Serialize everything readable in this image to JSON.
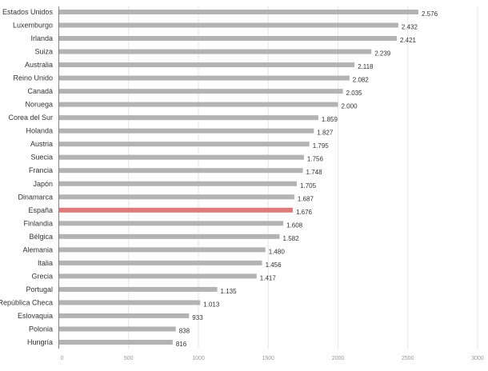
{
  "chart_data": {
    "type": "bar",
    "orientation": "horizontal",
    "categories": [
      "Estados Unidos",
      "Luxemburgo",
      "Irlanda",
      "Suiza",
      "Australia",
      "Reino Unido",
      "Canadá",
      "Noruega",
      "Corea del Sur",
      "Holanda",
      "Austria",
      "Suecia",
      "Francia",
      "Japón",
      "Dinamarca",
      "España",
      "Finlandia",
      "Bélgica",
      "Alemania",
      "Italia",
      "Grecia",
      "Portugal",
      "República Checa",
      "Eslovaquia",
      "Polonia",
      "Hungría"
    ],
    "values": [
      2576,
      2432,
      2421,
      2239,
      2118,
      2082,
      2035,
      2000,
      1859,
      1827,
      1795,
      1756,
      1748,
      1705,
      1687,
      1676,
      1608,
      1582,
      1480,
      1456,
      1417,
      1135,
      1013,
      933,
      838,
      816
    ],
    "value_labels": [
      "2.576",
      "2.432",
      "2.421",
      "2.239",
      "2.118",
      "2.082",
      "2.035",
      "2.000",
      "1.859",
      "1.827",
      "1.795",
      "1.756",
      "1.748",
      "1.705",
      "1.687",
      "1.676",
      "1.608",
      "1.582",
      "1.480",
      "1.456",
      "1.417",
      "1.135",
      "1.013",
      "933",
      "838",
      "816"
    ],
    "highlight": "España",
    "xlim": [
      0,
      3000
    ],
    "xticks": [
      "0",
      "500",
      "1000",
      "1500",
      "2000",
      "2500",
      "3000"
    ],
    "grid": true,
    "colors": {
      "bar": "#b3b3b3",
      "highlight": "#e07b7b",
      "highlight_label": "#c87a7a",
      "axis": "#e05a5a",
      "grid": "#e6e6e6"
    }
  }
}
